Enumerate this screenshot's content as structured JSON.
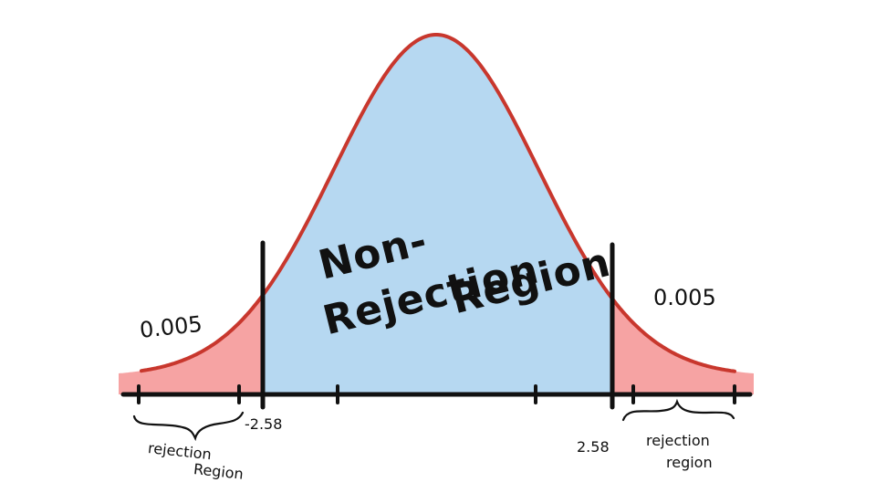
{
  "diagram": {
    "distribution": "normal",
    "critical_values": {
      "left": -2.58,
      "right": 2.58
    },
    "labels": {
      "left_tail_area": "0.005",
      "right_tail_area": "0.005",
      "left_critical": "-2.58",
      "right_critical": "2.58",
      "center_line1": "Non-",
      "center_line2": "Rejection",
      "center_line3": "Region",
      "left_rejection_line1": "rejection",
      "left_rejection_line2": "Region",
      "right_rejection_line1": "rejection",
      "right_rejection_line2": "region"
    },
    "colors": {
      "curve": "#c8372d",
      "center_fill": "#b6d8f1",
      "tail_fill": "#f6a3a3",
      "axis": "#111111"
    }
  }
}
